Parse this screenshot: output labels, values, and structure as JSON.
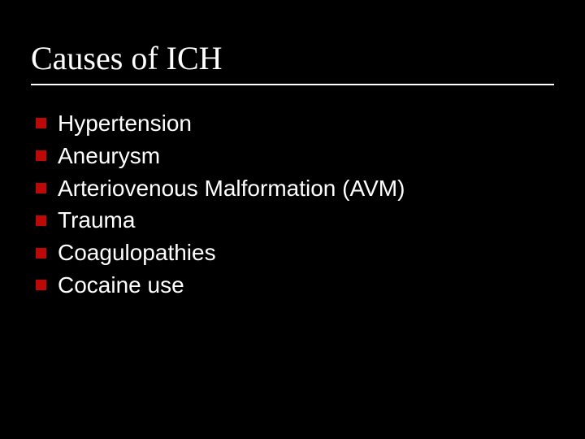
{
  "slide": {
    "title": "Causes of ICH",
    "title_fontsize": 40,
    "title_font_family": "Times New Roman",
    "title_color": "#ffffff",
    "underline_color": "#ffffff",
    "background_color": "#000000",
    "body_fontsize": 28,
    "body_color": "#ffffff",
    "bullet_color": "#bd0808",
    "bullet_size": 13,
    "items": [
      "Hypertension",
      "Aneurysm",
      "Arteriovenous Malformation (AVM)",
      "Trauma",
      "Coagulopathies",
      "Cocaine use"
    ]
  }
}
